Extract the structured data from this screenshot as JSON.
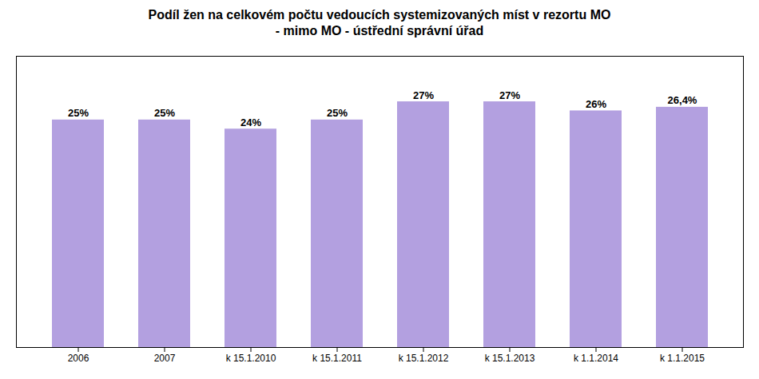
{
  "chart_data": {
    "type": "bar",
    "title": "Podíl žen na celkovém počtu vedoucích systemizovaných míst v rezortu MO",
    "subtitle": "- mimo MO - ústřední správní úřad",
    "categories": [
      "2006",
      "2007",
      "k 15.1.2010",
      "k 15.1.2011",
      "k 15.1.2012",
      "k 15.1.2013",
      "k 1.1.2014",
      "k 1.1.2015"
    ],
    "values": [
      25,
      25,
      24,
      25,
      27,
      27,
      26,
      26.4
    ],
    "value_labels": [
      "25%",
      "25%",
      "24%",
      "25%",
      "27%",
      "27%",
      "26%",
      "26,4%"
    ],
    "data_labels": true,
    "color": "#b3a0e0",
    "ylim": [
      0,
      32
    ],
    "tick_labels": "x"
  }
}
